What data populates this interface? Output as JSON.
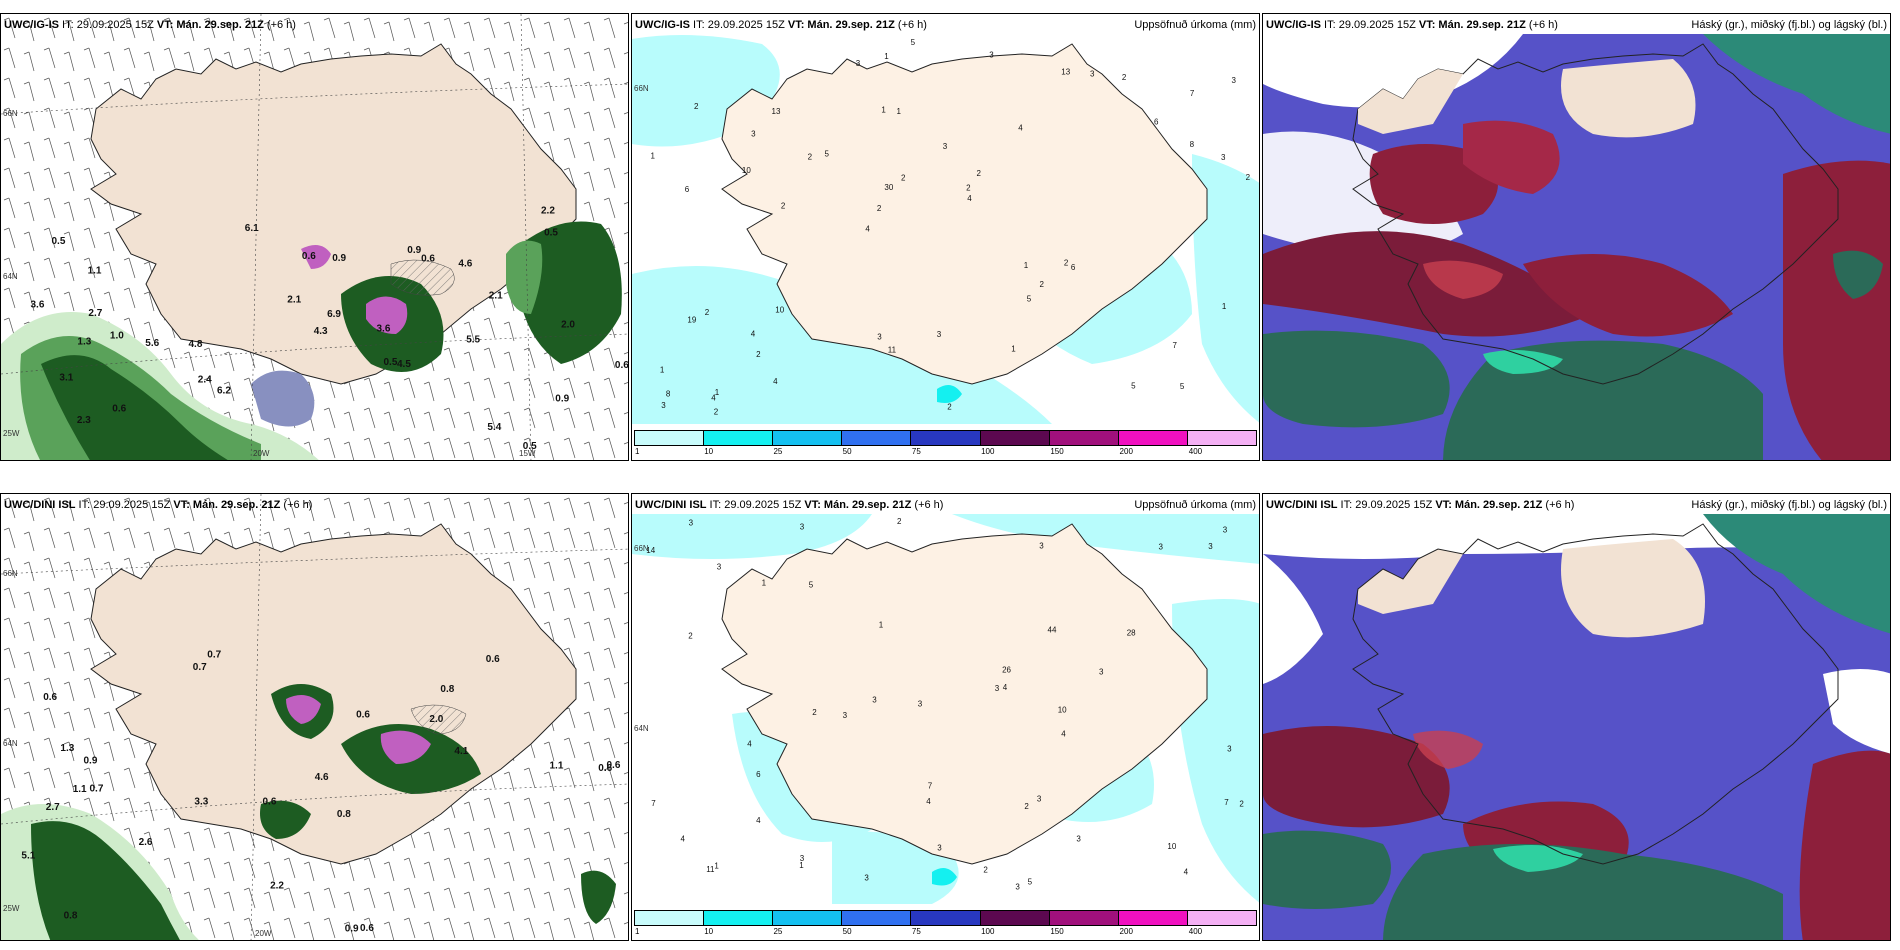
{
  "panels": [
    {
      "header_model": "UWC/IG-IS",
      "header_it": " IT: 29.09.2025 15Z ",
      "header_vt_label": "VT:",
      "header_vt": " Mán. 29.sep. 21Z",
      "header_step": " (+6 h)",
      "right_title": "",
      "axis_labels": [
        "66N",
        "64N",
        "25W",
        "20W",
        "15W"
      ]
    },
    {
      "header_model": "UWC/IG-IS",
      "header_it": " IT: 29.09.2025 15Z ",
      "header_vt_label": "VT:",
      "header_vt": " Mán. 29.sep. 21Z",
      "header_step": " (+6 h)",
      "right_title": "Uppsöfnuð úrkoma (mm)",
      "axis_labels": [
        "66N"
      ]
    },
    {
      "header_model": "UWC/IG-IS",
      "header_it": " IT: 29.09.2025 15Z ",
      "header_vt_label": "VT:",
      "header_vt": " Mán. 29.sep. 21Z",
      "header_step": " (+6 h)",
      "right_title": "Háský (gr.), miðský (fj.bl.) og lágský (bl.)",
      "axis_labels": []
    },
    {
      "header_model": "UWC/DINI ISL",
      "header_it": " IT: 29.09.2025 15Z ",
      "header_vt_label": "VT:",
      "header_vt": " Mán. 29.sep. 21Z",
      "header_step": " (+6 h)",
      "right_title": "",
      "axis_labels": [
        "66N",
        "64N",
        "25W",
        "20W"
      ]
    },
    {
      "header_model": "UWC/DINI ISL",
      "header_it": " IT: 29.09.2025 15Z ",
      "header_vt_label": "VT:",
      "header_vt": " Mán. 29.sep. 21Z",
      "header_step": " (+6 h)",
      "right_title": "Uppsöfnuð úrkoma (mm)",
      "axis_labels": [
        "66N",
        "64N"
      ]
    },
    {
      "header_model": "UWC/DINI ISL",
      "header_it": " IT: 29.09.2025 15Z ",
      "header_vt_label": "VT:",
      "header_vt": " Mán. 29.sep. 21Z",
      "header_step": " (+6 h)",
      "right_title": "Háský (gr.), miðský (fj.bl.) og lágský (bl.)",
      "axis_labels": []
    }
  ],
  "legend": {
    "ticks": [
      "1",
      "10",
      "25",
      "50",
      "75",
      "100",
      "150",
      "200",
      "400"
    ],
    "colors": [
      "#c8fcfc",
      "#14f0f0",
      "#14c0f0",
      "#3070f0",
      "#2838c0",
      "#5c0850",
      "#a0107c",
      "#f010c0",
      "#f4b0f4"
    ]
  },
  "precip_labels_top": [
    "5",
    "6",
    "7",
    "4",
    "4",
    "1",
    "1",
    "3",
    "2",
    "5",
    "1",
    "2",
    "1",
    "2",
    "6",
    "2",
    "1",
    "2",
    "1",
    "8",
    "2",
    "3",
    "30",
    "13",
    "13",
    "10",
    "5",
    "7",
    "2",
    "2",
    "2",
    "10",
    "5",
    "4",
    "3",
    "2",
    "8",
    "11",
    "4",
    "19",
    "6",
    "3",
    "2",
    "1",
    "4",
    "2",
    "3",
    "3",
    "2",
    "5",
    "2",
    "1",
    "3",
    "3",
    "4",
    "3",
    "3",
    "2",
    "1"
  ],
  "precip_labels_bottom": [
    "3",
    "3",
    "3",
    "3",
    "3",
    "3",
    "2",
    "4",
    "2",
    "1",
    "3",
    "3",
    "3",
    "4",
    "3",
    "3",
    "2",
    "1",
    "3",
    "14",
    "2",
    "3",
    "26",
    "11",
    "28",
    "4",
    "7",
    "6",
    "3",
    "4",
    "3",
    "5",
    "7",
    "3",
    "4",
    "10",
    "7",
    "4",
    "44",
    "10",
    "4",
    "3",
    "2",
    "1",
    "5",
    "3",
    "3",
    "2",
    "1"
  ],
  "wind_labels_top": [
    "0.5",
    "1.0",
    "0.5",
    "0.5",
    "0.9",
    "1.1",
    "0.6",
    "4.8",
    "4.6",
    "0.6",
    "0.6",
    "5.4",
    "6.2",
    "6.1",
    "3.6",
    "3.1",
    "5.5",
    "6.9",
    "3.6",
    "2.3",
    "2.2",
    "0.9",
    "2.1",
    "0.6",
    "2.0",
    "2.7",
    "5.6",
    "4.3",
    "2.1",
    "0.5",
    "4.5",
    "1.3",
    "2.4",
    "0.9"
  ],
  "wind_labels_bottom": [
    "0.7",
    "0.8",
    "0.6",
    "0.6",
    "0.8",
    "0.7",
    "0.6",
    "2.0",
    "2.7",
    "0.6",
    "4.6",
    "0.8",
    "0.7",
    "3.3",
    "0.9",
    "0.6",
    "2.2",
    "0.6",
    "4.1",
    "2.6",
    "0.9",
    "1.1",
    "0.6",
    "1.1",
    "5.1",
    "1.3"
  ]
}
